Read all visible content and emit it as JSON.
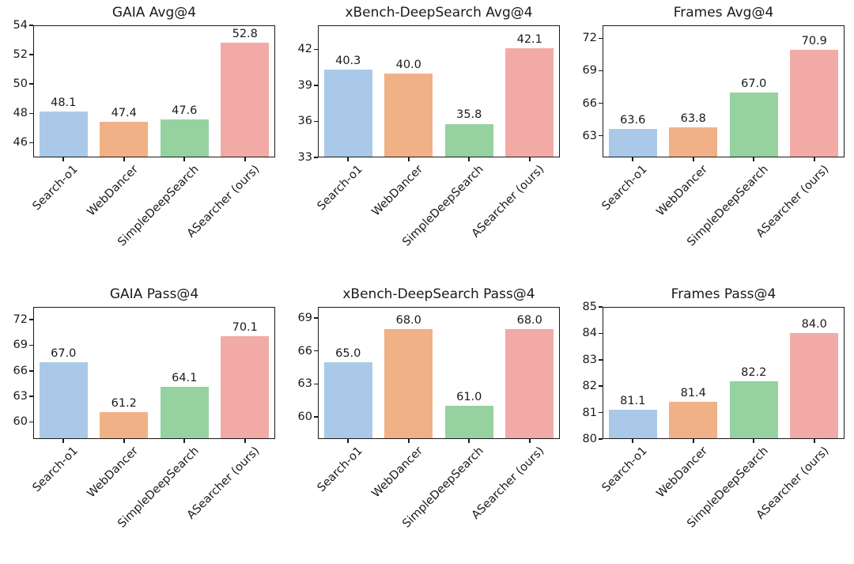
{
  "figure": {
    "background": "#ffffff",
    "text_color": "#1a1a1a",
    "layout": "2 rows x 3 columns of bar charts"
  },
  "palette": {
    "colors": [
      "#aac9e8",
      "#f0b186",
      "#95d2a0",
      "#f2aaa6"
    ]
  },
  "categories": [
    "Search-o1",
    "WebDancer",
    "SimpleDeepSearch",
    "ASearcher (ours)"
  ],
  "chart_data": [
    {
      "type": "bar",
      "title": "GAIA Avg@4",
      "categories": [
        "Search-o1",
        "WebDancer",
        "SimpleDeepSearch",
        "ASearcher (ours)"
      ],
      "values": [
        48.1,
        47.4,
        47.6,
        52.8
      ],
      "labels": [
        "48.1",
        "47.4",
        "47.6",
        "52.8"
      ],
      "xlabel": "",
      "ylabel": "",
      "ylim": [
        45,
        54
      ],
      "yticks": [
        46,
        48,
        50,
        52,
        54
      ],
      "grid": false,
      "legend": false
    },
    {
      "type": "bar",
      "title": "xBench-DeepSearch Avg@4",
      "categories": [
        "Search-o1",
        "WebDancer",
        "SimpleDeepSearch",
        "ASearcher (ours)"
      ],
      "values": [
        40.3,
        40.0,
        35.8,
        42.1
      ],
      "labels": [
        "40.3",
        "40.0",
        "35.8",
        "42.1"
      ],
      "xlabel": "",
      "ylabel": "",
      "ylim": [
        33,
        44
      ],
      "yticks": [
        33,
        36,
        39,
        42
      ],
      "grid": false,
      "legend": false
    },
    {
      "type": "bar",
      "title": "Frames Avg@4",
      "categories": [
        "Search-o1",
        "WebDancer",
        "SimpleDeepSearch",
        "ASearcher (ours)"
      ],
      "values": [
        63.6,
        63.8,
        67.0,
        70.9
      ],
      "labels": [
        "63.6",
        "63.8",
        "67.0",
        "70.9"
      ],
      "xlabel": "",
      "ylabel": "",
      "ylim": [
        61,
        73.2
      ],
      "yticks": [
        63,
        66,
        69,
        72
      ],
      "grid": false,
      "legend": false
    },
    {
      "type": "bar",
      "title": "GAIA Pass@4",
      "categories": [
        "Search-o1",
        "WebDancer",
        "SimpleDeepSearch",
        "ASearcher (ours)"
      ],
      "values": [
        67.0,
        61.2,
        64.1,
        70.1
      ],
      "labels": [
        "67.0",
        "61.2",
        "64.1",
        "70.1"
      ],
      "xlabel": "",
      "ylabel": "",
      "ylim": [
        58,
        73.5
      ],
      "yticks": [
        60,
        63,
        66,
        69,
        72
      ],
      "grid": false,
      "legend": false
    },
    {
      "type": "bar",
      "title": "xBench-DeepSearch Pass@4",
      "categories": [
        "Search-o1",
        "WebDancer",
        "SimpleDeepSearch",
        "ASearcher (ours)"
      ],
      "values": [
        65.0,
        68.0,
        61.0,
        68.0
      ],
      "labels": [
        "65.0",
        "68.0",
        "61.0",
        "68.0"
      ],
      "xlabel": "",
      "ylabel": "",
      "ylim": [
        58,
        70
      ],
      "yticks": [
        60,
        63,
        66,
        69
      ],
      "grid": false,
      "legend": false
    },
    {
      "type": "bar",
      "title": "Frames Pass@4",
      "categories": [
        "Search-o1",
        "WebDancer",
        "SimpleDeepSearch",
        "ASearcher (ours)"
      ],
      "values": [
        81.1,
        81.4,
        82.2,
        84.0
      ],
      "labels": [
        "81.1",
        "81.4",
        "82.2",
        "84.0"
      ],
      "xlabel": "",
      "ylabel": "",
      "ylim": [
        80,
        85
      ],
      "yticks": [
        80,
        81,
        82,
        83,
        84,
        85
      ],
      "grid": false,
      "legend": false
    }
  ]
}
